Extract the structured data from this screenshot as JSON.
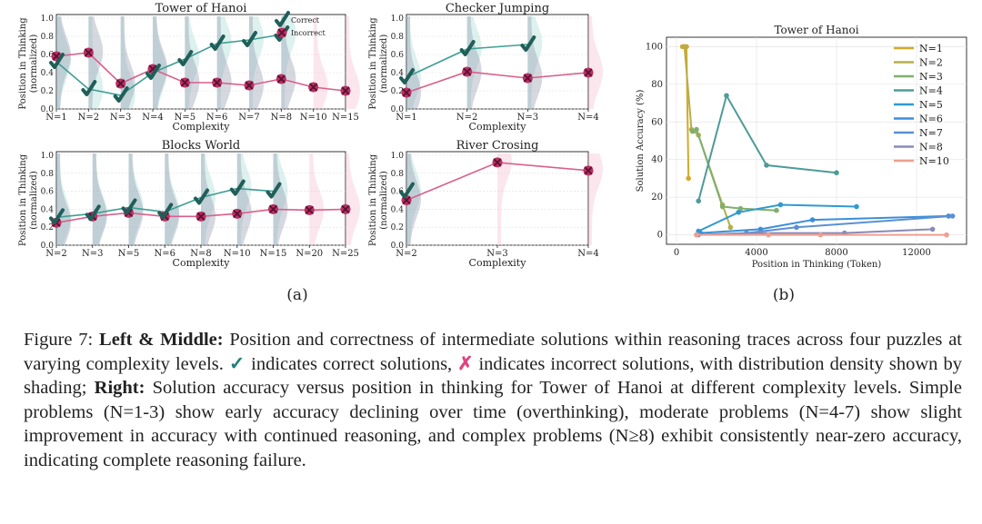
{
  "colors": {
    "correct": "#3e9e94",
    "correct_marker": "#1f5f58",
    "incorrect": "#d95f8c",
    "incorrect_marker": "#b83064",
    "shade_correct": "#9fd6cd",
    "shade_incorrect": "#f5b7cb",
    "shade_mixed": "#8a8ea6",
    "check_glyph": "#1f7f7a",
    "cross_glyph": "#e0447f"
  },
  "legend": {
    "correct": "Correct",
    "incorrect": "Incorrect"
  },
  "subfig_labels": {
    "a": "(a)",
    "b": "(b)"
  },
  "caption": {
    "prefix": "Figure 7: ",
    "bold1": "Left & Middle:",
    "text1": " Position and correctness of intermediate solutions within reasoning traces across four puzzles at varying complexity levels. ",
    "check": "✓",
    "text2": " indicates correct solutions, ",
    "cross": "✗",
    "text3": " indicates incorrect solutions, with distribution density shown by shading; ",
    "bold2": "Right:",
    "text4": " Solution accuracy versus position in thinking for Tower of Hanoi at different complexity levels. Simple problems (N=1-3) show early accuracy declining over time (overthinking), moderate problems (N=4-7) show slight improvement in accuracy with continued reasoning, and complex problems (N≥8) exhibit consistently near-zero accuracy, indicating complete reasoning failure."
  },
  "chart_data": [
    {
      "type": "line",
      "title": "Tower of Hanoi",
      "xlabel": "Complexity",
      "ylabel": "Position in Thinking\n(normalized)",
      "ylim": [
        0,
        1.0
      ],
      "yticks": [
        "0.0",
        "0.2",
        "0.4",
        "0.6",
        "0.8",
        "1.0"
      ],
      "categories": [
        "N=1",
        "N=2",
        "N=3",
        "N=4",
        "N=5",
        "N=6",
        "N=7",
        "N=8",
        "N=10",
        "N=15"
      ],
      "series": [
        {
          "name": "Correct",
          "values": [
            0.52,
            0.22,
            0.15,
            0.4,
            0.55,
            0.72,
            0.76,
            0.82,
            null,
            null
          ]
        },
        {
          "name": "Incorrect",
          "values": [
            0.58,
            0.62,
            0.28,
            0.44,
            0.29,
            0.29,
            0.26,
            0.33,
            0.24,
            0.2
          ]
        }
      ],
      "legend": "top-right"
    },
    {
      "type": "line",
      "title": "Checker Jumping",
      "xlabel": "Complexity",
      "ylabel": "Position in Thinking\n(normalized)",
      "ylim": [
        0,
        1.0
      ],
      "yticks": [
        "0.0",
        "0.2",
        "0.4",
        "0.6",
        "0.8",
        "1.0"
      ],
      "categories": [
        "N=1",
        "N=2",
        "N=3",
        "N=4"
      ],
      "series": [
        {
          "name": "Correct",
          "values": [
            0.35,
            0.66,
            0.71,
            null
          ]
        },
        {
          "name": "Incorrect",
          "values": [
            0.18,
            0.41,
            0.34,
            0.4
          ]
        }
      ]
    },
    {
      "type": "line",
      "title": "Blocks World",
      "xlabel": "Complexity",
      "ylabel": "Position in Thinking\n(normalized)",
      "ylim": [
        0,
        1.0
      ],
      "yticks": [
        "0.0",
        "0.2",
        "0.4",
        "0.6",
        "0.8",
        "1.0"
      ],
      "categories": [
        "N=2",
        "N=3",
        "N=5",
        "N=6",
        "N=8",
        "N=10",
        "N=15",
        "N=20",
        "N=25"
      ],
      "series": [
        {
          "name": "Correct",
          "values": [
            0.31,
            0.35,
            0.42,
            0.37,
            0.53,
            0.63,
            0.6,
            null,
            null
          ]
        },
        {
          "name": "Incorrect",
          "values": [
            0.25,
            0.32,
            0.36,
            0.32,
            0.32,
            0.35,
            0.4,
            0.39,
            0.4
          ]
        }
      ]
    },
    {
      "type": "line",
      "title": "River Crosing",
      "xlabel": "Complexity",
      "ylabel": "Position in Thinking\n(normalized)",
      "ylim": [
        0,
        1.0
      ],
      "yticks": [
        "0.0",
        "0.2",
        "0.4",
        "0.6",
        "0.8",
        "1.0"
      ],
      "categories": [
        "N=2",
        "N=3",
        "N=4"
      ],
      "series": [
        {
          "name": "Correct",
          "values": [
            0.6,
            null,
            null
          ]
        },
        {
          "name": "Incorrect",
          "values": [
            0.5,
            0.92,
            0.83
          ]
        }
      ]
    },
    {
      "type": "line",
      "title": "Tower of Hanoi",
      "xlabel": "Position in Thinking (Token)",
      "ylabel": "Solution Accuracy (%)",
      "xlim": [
        -500,
        14500
      ],
      "ylim": [
        -5,
        105
      ],
      "xticks": [
        0,
        4000,
        8000,
        12000
      ],
      "yticks": [
        0,
        20,
        40,
        60,
        80,
        100
      ],
      "legend": "top-right",
      "series": [
        {
          "name": "N=1",
          "color": "#d4a92a",
          "x": [
            300,
            400,
            500,
            600
          ],
          "y": [
            100,
            100,
            100,
            30
          ]
        },
        {
          "name": "N=2",
          "color": "#b6ad4b",
          "x": [
            400,
            750,
            1100,
            2300,
            2700
          ],
          "y": [
            100,
            56,
            53,
            16,
            4
          ]
        },
        {
          "name": "N=3",
          "color": "#7faf6e",
          "x": [
            800,
            1000,
            2300,
            3200,
            5000
          ],
          "y": [
            55,
            56,
            15,
            14,
            13
          ]
        },
        {
          "name": "N=4",
          "color": "#4e9b97",
          "x": [
            1100,
            2500,
            4500,
            8000
          ],
          "y": [
            18,
            74,
            37,
            33
          ]
        },
        {
          "name": "N=5",
          "color": "#2f9ad1",
          "x": [
            1100,
            3100,
            5200,
            9000
          ],
          "y": [
            2,
            12,
            16,
            15
          ]
        },
        {
          "name": "N=6",
          "color": "#3b8fd8",
          "x": [
            1200,
            4200,
            6800,
            13600
          ],
          "y": [
            1,
            3,
            8,
            10
          ]
        },
        {
          "name": "N=7",
          "color": "#5b8fd6",
          "x": [
            1000,
            3500,
            6000,
            13800
          ],
          "y": [
            0,
            1,
            4,
            10
          ]
        },
        {
          "name": "N=8",
          "color": "#8a8ab8",
          "x": [
            1100,
            4200,
            8400,
            12800
          ],
          "y": [
            0,
            1,
            1,
            3
          ]
        },
        {
          "name": "N=10",
          "color": "#ef9f8e",
          "x": [
            1000,
            4600,
            7200,
            13500
          ],
          "y": [
            0,
            0,
            0,
            0
          ]
        }
      ]
    }
  ]
}
